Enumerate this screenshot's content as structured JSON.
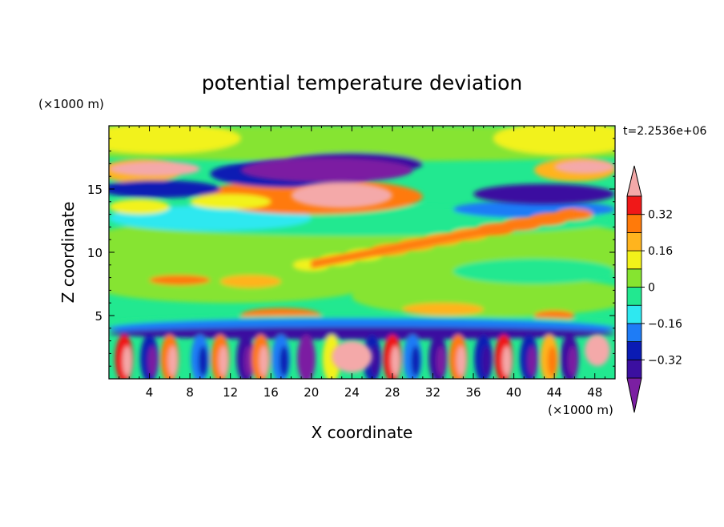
{
  "chart_data": {
    "type": "heatmap",
    "title": "potential temperature deviation",
    "xlabel": "X coordinate",
    "ylabel": "Z coordinate",
    "x_unit_label": "(×1000 m)",
    "y_unit_label": "(×1000 m)",
    "time_label": "t=2.2536e+06",
    "xlim": [
      0,
      50
    ],
    "ylim": [
      0,
      20
    ],
    "x_ticks": [
      4,
      8,
      12,
      16,
      20,
      24,
      28,
      32,
      36,
      40,
      44,
      48
    ],
    "y_ticks": [
      5,
      10,
      15
    ],
    "colorbar": {
      "levels": [
        -0.48,
        -0.4,
        -0.32,
        -0.24,
        -0.16,
        -0.08,
        0,
        0.08,
        0.16,
        0.24,
        0.32,
        0.4,
        0.48
      ],
      "tick_values": [
        -0.32,
        -0.16,
        0,
        0.16,
        0.32
      ],
      "tick_labels": [
        "−0.32",
        "−0.16",
        "0",
        "0.16",
        "0.32"
      ],
      "colors": [
        "#7b1fa2",
        "#3b0fa0",
        "#0a1bb4",
        "#1e7cf6",
        "#2ee8f0",
        "#22e890",
        "#86e430",
        "#f2f21a",
        "#ffb41e",
        "#ff7a0a",
        "#f01818",
        "#f4a9a9"
      ]
    },
    "features": [
      {
        "name": "upper-warm-layer-left",
        "x": [
          0,
          9
        ],
        "z": [
          16.0,
          17.2
        ],
        "value": 0.45
      },
      {
        "name": "upper-warm-layer-right",
        "x": [
          44,
          50
        ],
        "z": [
          16.2,
          17.3
        ],
        "value": 0.45
      },
      {
        "name": "upper-cold-band",
        "x": [
          13,
          30
        ],
        "z": [
          15.5,
          17.5
        ],
        "value": -0.45
      },
      {
        "name": "warm-anomaly-z14",
        "x": [
          18,
          28
        ],
        "z": [
          13.5,
          15.5
        ],
        "value": 0.45
      },
      {
        "name": "cold-band-z14",
        "x": [
          36,
          50
        ],
        "z": [
          13.8,
          15.4
        ],
        "value": -0.4
      },
      {
        "name": "tilted-warm-layer",
        "x": [
          20,
          46
        ],
        "z": [
          9.0,
          13.0
        ],
        "value": 0.3
      },
      {
        "name": "near-surface-warm-x24",
        "x": [
          22,
          26
        ],
        "z": [
          0.5,
          3.0
        ],
        "value": 0.4
      },
      {
        "name": "near-surface-warm-x48",
        "x": [
          47,
          49.5
        ],
        "z": [
          1.0,
          3.5
        ],
        "value": 0.48
      }
    ]
  }
}
